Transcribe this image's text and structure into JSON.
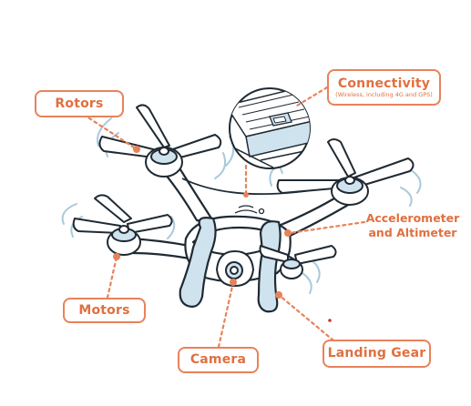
{
  "labels": {
    "rotors": "Rotors",
    "connectivity": "Connectivity",
    "connectivity_sub": "(Wireless, including 4G and GPS)",
    "accelerometer_line1": "Accelerometer",
    "accelerometer_line2": "and Altimeter",
    "motors": "Motors",
    "camera": "Camera",
    "landing_gear": "Landing Gear"
  },
  "colors": {
    "accent": "#e8825a",
    "accent_text": "#e0703f",
    "outline": "#1f2a33",
    "light_blue": "#cfe3ee",
    "blade_blue": "#a9c9dc"
  }
}
